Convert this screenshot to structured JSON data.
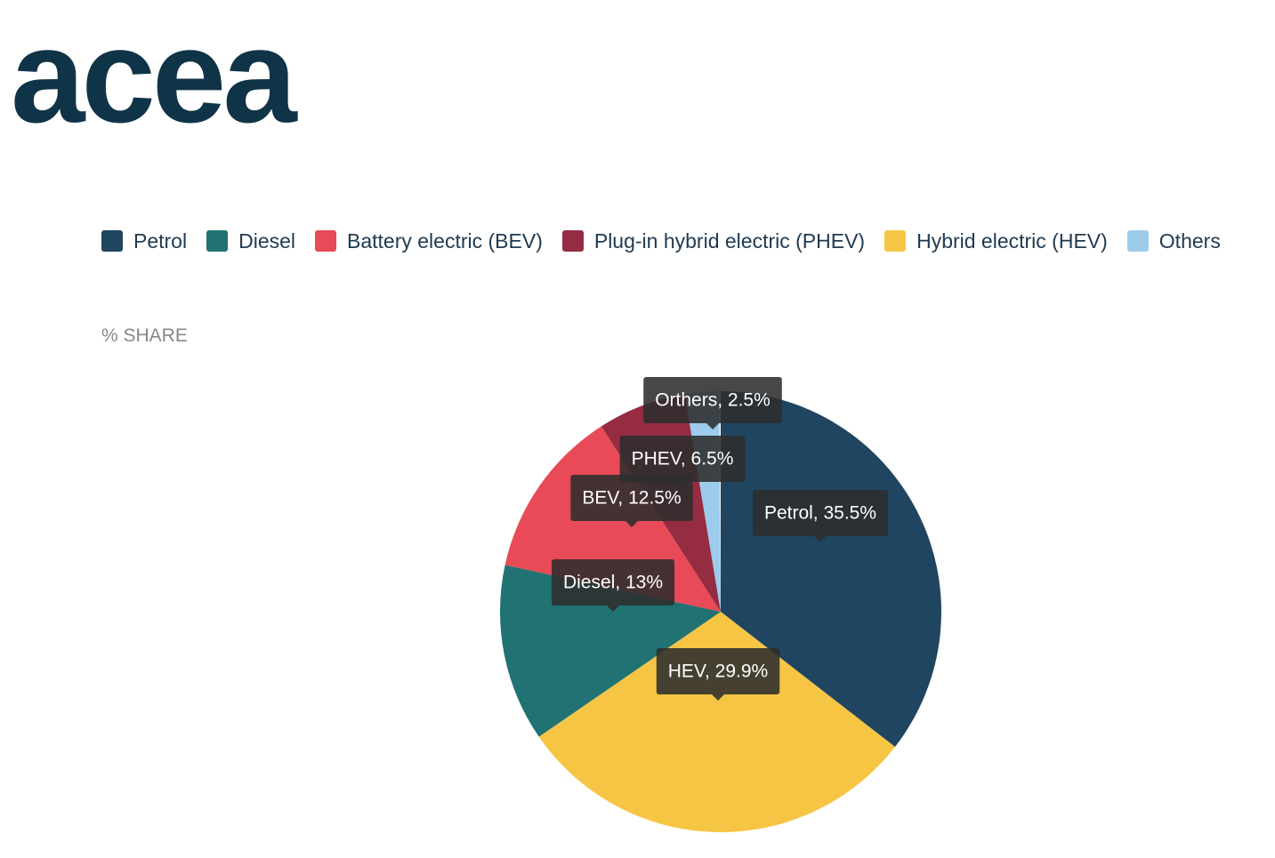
{
  "logo": "acea",
  "chart_data": {
    "type": "pie",
    "subtitle": "% SHARE",
    "legend": [
      {
        "name": "Petrol",
        "color": "#1f4560"
      },
      {
        "name": "Diesel",
        "color": "#217272"
      },
      {
        "name": "Battery electric (BEV)",
        "color": "#e84a57"
      },
      {
        "name": "Plug-in hybrid electric (PHEV)",
        "color": "#952c42"
      },
      {
        "name": "Hybrid electric (HEV)",
        "color": "#f7c544"
      },
      {
        "name": "Others",
        "color": "#9dcbec"
      }
    ],
    "values": [
      35.5,
      29.9,
      13,
      12.5,
      6.5,
      2.5
    ],
    "value_labels": [
      "Petrol, 35.5%",
      "HEV, 29.9%",
      "Diesel, 13%",
      "BEV, 12.5%",
      "PHEV, 6.5%",
      "Orthers, 2.5%"
    ],
    "colors": [
      "#1f4560",
      "#f7c544",
      "#217272",
      "#e84a57",
      "#952c42",
      "#9dcbec"
    ]
  }
}
